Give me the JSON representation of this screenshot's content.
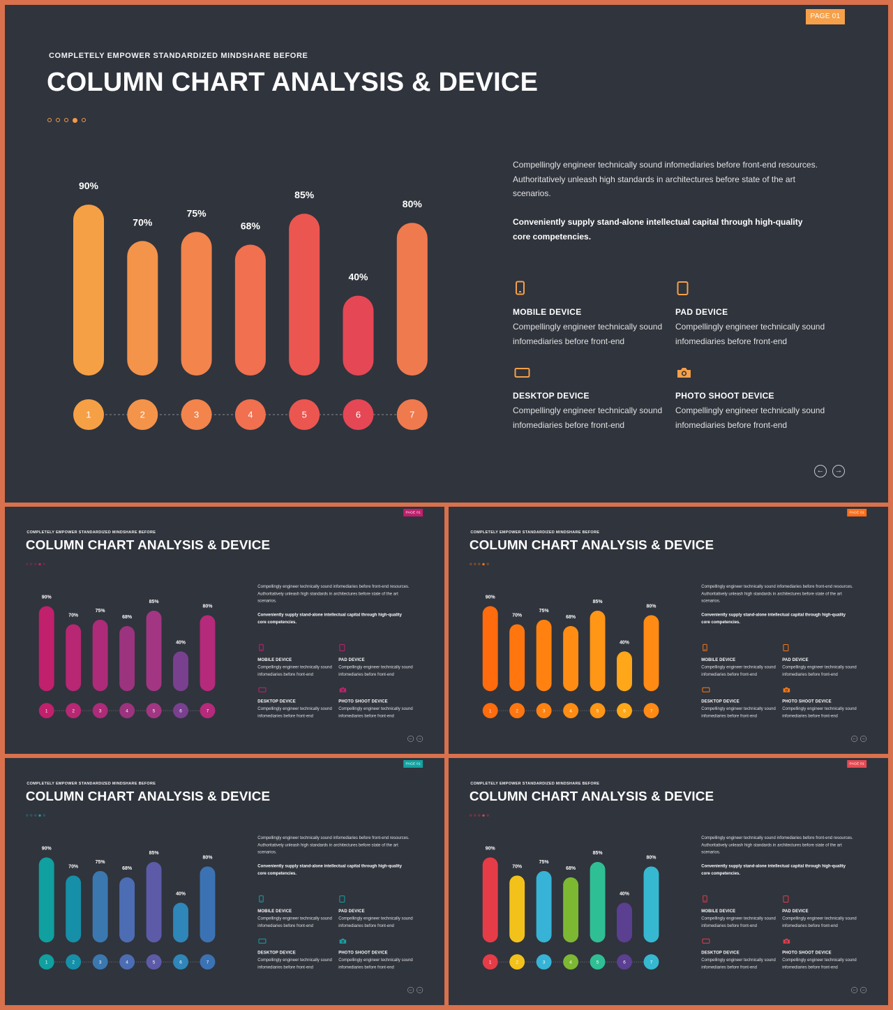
{
  "page_badge": "PAGE 01",
  "subtitle": "COMPLETELY EMPOWER STANDARDIZED MINDSHARE BEFORE",
  "title": "COLUMN CHART ANALYSIS & DEVICE",
  "description": "Compellingly engineer technically sound infomediaries before front-end resources. Authoritatively unleash high standards in architectures before state of the art scenarios.",
  "description_bold": "Conveniently supply stand-alone intellectual capital through high-quality core competencies.",
  "features": [
    {
      "icon": "mobile-icon",
      "name": "MOBILE DEVICE",
      "desc": "Compellingly engineer technically sound infomediaries before front-end"
    },
    {
      "icon": "tablet-icon",
      "name": "PAD DEVICE",
      "desc": "Compellingly engineer technically sound infomediaries before front-end"
    },
    {
      "icon": "desktop-icon",
      "name": "DESKTOP DEVICE",
      "desc": "Compellingly engineer technically sound infomediaries before front-end"
    },
    {
      "icon": "camera-icon",
      "name": "PHOTO SHOOT DEVICE",
      "desc": "Compellingly engineer technically sound infomediaries before front-end"
    }
  ],
  "nav": {
    "prev_icon": "arrow-left-icon",
    "next_icon": "arrow-right-icon"
  },
  "chart_data": {
    "type": "bar",
    "categories": [
      "1",
      "2",
      "3",
      "4",
      "5",
      "6",
      "7"
    ],
    "values": [
      90,
      70,
      75,
      68,
      85,
      40,
      80
    ],
    "labels": [
      "90%",
      "70%",
      "75%",
      "68%",
      "85%",
      "40%",
      "80%"
    ],
    "ylim": [
      0,
      100
    ]
  },
  "themes": [
    {
      "name": "orange",
      "badge": "#f6a04a",
      "accent": "#f6a04a",
      "dots": "#f49a48",
      "colors": [
        "#f6a045",
        "#f4934a",
        "#f2844c",
        "#f0704f",
        "#ec5650",
        "#e54755",
        "#ef7a4e"
      ]
    },
    {
      "name": "magenta",
      "badge": "#c21e6e",
      "accent": "#c2226e",
      "dots": "#c2226e",
      "colors": [
        "#c0206c",
        "#b72773",
        "#ad2b78",
        "#9c337e",
        "#a23682",
        "#7a4090",
        "#b52a7a"
      ]
    },
    {
      "name": "amber",
      "badge": "#ff6f1a",
      "accent": "#ff7a12",
      "dots": "#ff7a12",
      "colors": [
        "#ff6b0d",
        "#ff760f",
        "#ff8211",
        "#ff8d13",
        "#ff9615",
        "#ffa718",
        "#ff8a14"
      ]
    },
    {
      "name": "teal",
      "badge": "#12a3a0",
      "accent": "#19a1a3",
      "dots": "#19a1a3",
      "colors": [
        "#0fa09f",
        "#168fa8",
        "#3b78b0",
        "#4c6db3",
        "#5d5ba8",
        "#2f86b8",
        "#3b72b4"
      ]
    },
    {
      "name": "multi",
      "badge": "#e84a52",
      "accent": "#e63c4a",
      "dots": "#e63c4a",
      "colors": [
        "#e63c48",
        "#f3c21a",
        "#36b3d6",
        "#7db832",
        "#2fbf94",
        "#5b3f91",
        "#36b8d0"
      ]
    }
  ]
}
